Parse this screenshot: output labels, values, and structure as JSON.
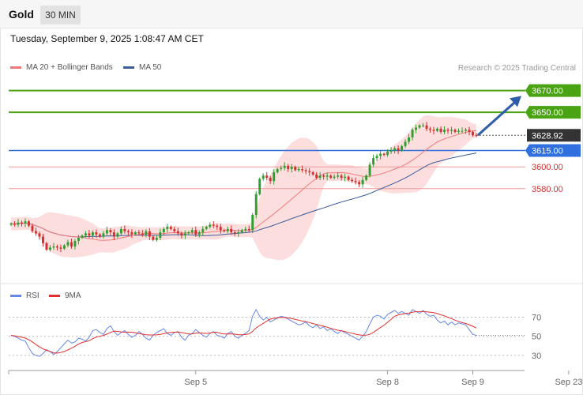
{
  "header": {
    "symbol": "Gold",
    "timeframe": "30 MIN"
  },
  "timestamp": "Tuesday, September 9, 2025 1:08:47 AM CET",
  "legend": {
    "ma20_label": "MA 20 + Bollinger Bands",
    "ma50_label": "MA 50",
    "credit": "Research © 2025 Trading Central"
  },
  "rsi_legend": {
    "rsi_label": "RSI",
    "ma_label": "9MA"
  },
  "colors": {
    "bull": "#2e9e2e",
    "bear": "#d42f2f",
    "ma20": "#f07a7a",
    "ma50": "#3b5b99",
    "band": "#fcd8d8",
    "resistance": "#4aa312",
    "pivot": "#2f6fde",
    "support": "#f09a9a",
    "current": "#333333",
    "arrow": "#2e5ea8",
    "rsi": "#6688e6",
    "rsi_ma": "#e03030"
  },
  "chart_data": [
    {
      "type": "candlestick",
      "title": "Gold",
      "timeframe": "30 MIN",
      "ylim": [
        3498,
        3682
      ],
      "x_labels": [
        "Sep 5",
        "Sep 8",
        "Sep 9",
        "Sep 23"
      ],
      "closes": [
        3548,
        3547,
        3549,
        3548,
        3550,
        3546,
        3541,
        3539,
        3536,
        3530,
        3524,
        3526,
        3527,
        3526,
        3525,
        3528,
        3531,
        3527,
        3532,
        3535,
        3537,
        3539,
        3537,
        3540,
        3538,
        3536,
        3539,
        3542,
        3540,
        3536,
        3539,
        3543,
        3541,
        3540,
        3538,
        3540,
        3539,
        3538,
        3541,
        3536,
        3533,
        3535,
        3540,
        3543,
        3545,
        3543,
        3541,
        3539,
        3537,
        3539,
        3540,
        3542,
        3538,
        3540,
        3543,
        3545,
        3547,
        3546,
        3545,
        3542,
        3541,
        3543,
        3540,
        3539,
        3540,
        3542,
        3543,
        3542,
        3556,
        3575,
        3589,
        3592,
        3590,
        3587,
        3595,
        3598,
        3599,
        3601,
        3598,
        3600,
        3597,
        3598,
        3597,
        3596,
        3595,
        3593,
        3590,
        3592,
        3591,
        3592,
        3590,
        3591,
        3592,
        3590,
        3591,
        3588,
        3587,
        3586,
        3584,
        3588,
        3592,
        3602,
        3608,
        3610,
        3612,
        3611,
        3614,
        3615,
        3617,
        3615,
        3619,
        3623,
        3627,
        3634,
        3636,
        3638,
        3638,
        3635,
        3634,
        3633,
        3635,
        3632,
        3634,
        3633,
        3634,
        3632,
        3633,
        3633,
        3634,
        3632,
        3629,
        3628.92
      ],
      "levels": [
        {
          "label": "3670.00",
          "value": 3670,
          "kind": "resistance"
        },
        {
          "label": "3650.00",
          "value": 3650,
          "kind": "resistance"
        },
        {
          "label": "3628.92",
          "value": 3628.92,
          "kind": "current"
        },
        {
          "label": "3615.00",
          "value": 3615,
          "kind": "pivot"
        },
        {
          "label": "3600.00",
          "value": 3600,
          "kind": "support"
        },
        {
          "label": "3580.00",
          "value": 3580,
          "kind": "support"
        }
      ],
      "series": [
        {
          "name": "MA 20 + Bollinger Bands"
        },
        {
          "name": "MA 50"
        }
      ],
      "forecast_arrow": {
        "from": 3629,
        "to": 3668
      }
    },
    {
      "type": "line",
      "title": "RSI",
      "ylim": [
        20,
        82
      ],
      "y_ticks": [
        70,
        50,
        30
      ],
      "reference_lines": [
        70,
        50,
        30
      ],
      "series": [
        {
          "name": "RSI",
          "values": [
            51,
            50,
            48,
            46,
            45,
            38,
            32,
            30,
            29,
            32,
            36,
            34,
            31,
            34,
            38,
            42,
            46,
            43,
            44,
            48,
            47,
            45,
            49,
            56,
            57,
            54,
            52,
            58,
            61,
            55,
            51,
            54,
            56,
            52,
            49,
            51,
            55,
            52,
            48,
            46,
            51,
            54,
            56,
            58,
            53,
            51,
            54,
            55,
            49,
            46,
            51,
            53,
            57,
            54,
            51,
            49,
            53,
            55,
            51,
            50,
            48,
            53,
            55,
            50,
            48,
            51,
            53,
            56,
            71,
            78,
            71,
            67,
            70,
            65,
            67,
            69,
            71,
            70,
            68,
            66,
            64,
            62,
            63,
            65,
            61,
            59,
            62,
            58,
            60,
            56,
            58,
            55,
            53,
            56,
            54,
            52,
            50,
            48,
            46,
            50,
            55,
            63,
            70,
            72,
            71,
            68,
            73,
            75,
            77,
            74,
            76,
            74,
            72,
            78,
            76,
            74,
            77,
            73,
            71,
            72,
            67,
            64,
            66,
            62,
            65,
            62,
            64,
            63,
            62,
            57,
            52,
            51
          ]
        },
        {
          "name": "9MA",
          "values": [
            51,
            50.5,
            49.8,
            49,
            48.1,
            46.4,
            44.1,
            41.4,
            38.9,
            36.9,
            35.3,
            34.1,
            32.7,
            32.4,
            33.1,
            34.1,
            35.7,
            37.6,
            39.5,
            41.8,
            43.6,
            44.4,
            45.4,
            47.6,
            49.2,
            50.1,
            50.9,
            52.3,
            54.1,
            55.5,
            55.1,
            54.6,
            54.3,
            54.4,
            54.3,
            53.7,
            52.9,
            52.3,
            51.7,
            51.4,
            51.4,
            51.5,
            52.1,
            52.7,
            53.6,
            54.1,
            54.3,
            54.5,
            53.9,
            53.2,
            52.5,
            52.6,
            53.2,
            53.6,
            53.2,
            53,
            53.5,
            54.3,
            54.2,
            53.1,
            52.5,
            52.4,
            52.6,
            52.2,
            51.7,
            51.6,
            51.9,
            52.5,
            55.1,
            58.8,
            61.3,
            63.5,
            66,
            68,
            68.8,
            69.4,
            69.7,
            69.7,
            69.3,
            68.6,
            67.8,
            66.9,
            66,
            65.4,
            64.4,
            63.3,
            62.4,
            61.4,
            60.6,
            59.5,
            58.3,
            57.3,
            56.4,
            55.9,
            55,
            54.1,
            53.2,
            52.2,
            51.5,
            51.1,
            51.2,
            52.1,
            54.1,
            56.6,
            59.2,
            61.6,
            64.7,
            67.8,
            71,
            72.4,
            73.2,
            73.8,
            74.2,
            75.3,
            75.7,
            75.8,
            76,
            75.6,
            75.1,
            74.7,
            73.8,
            72.5,
            71.4,
            69.9,
            68.5,
            66.9,
            65.6,
            64.3,
            63.4,
            62.2,
            60.5,
            58.7
          ]
        }
      ]
    }
  ]
}
